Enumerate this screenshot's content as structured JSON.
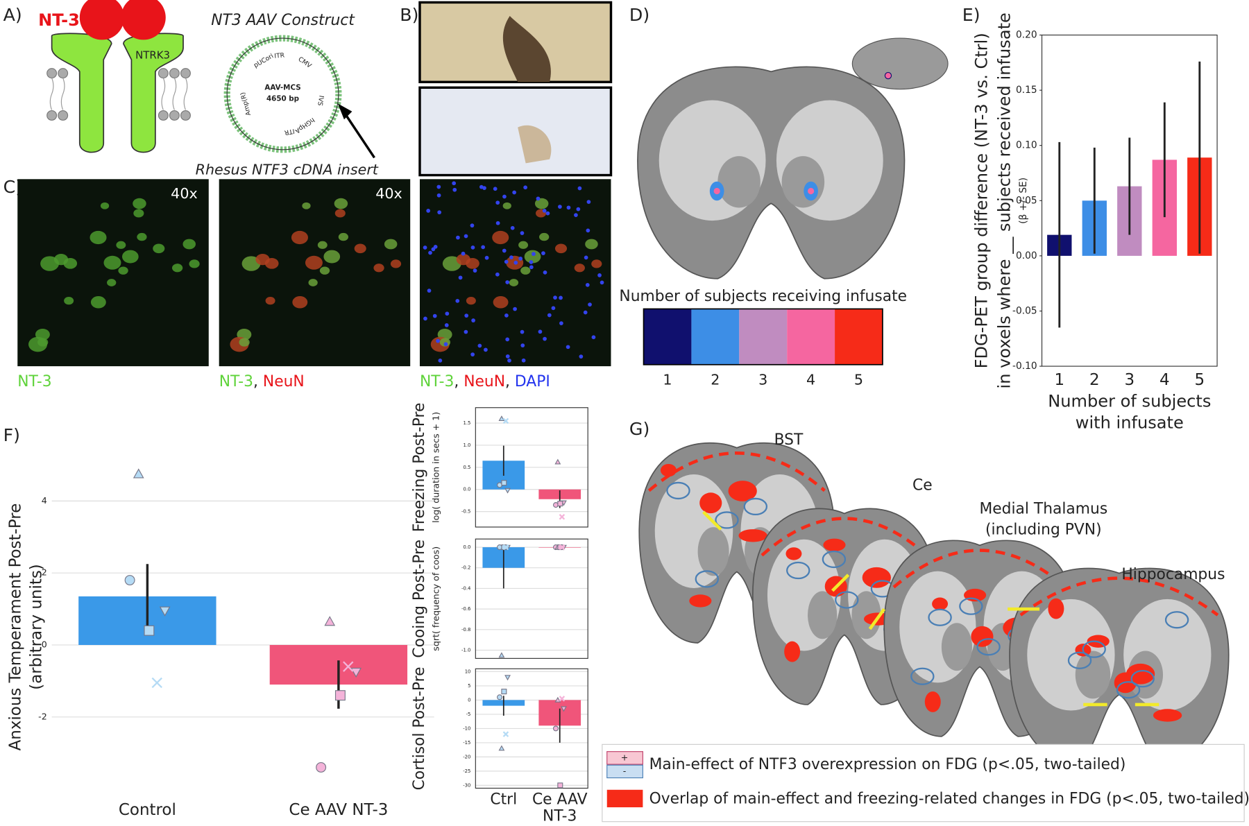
{
  "panels": {
    "A": {
      "label": "A)",
      "ligand": "NT-3",
      "receptor": "NTRK3",
      "construct_title": "NT3 AAV Construct",
      "plasmid_name": "AAV-MCS",
      "plasmid_size": "4650 bp",
      "plasmid_parts": [
        "pUCori",
        "ITR",
        "CMV",
        "IVS",
        "hGHpA",
        "ITR",
        "Amp(R)"
      ],
      "insert": "Rhesus NTF3 cDNA insert"
    },
    "B": {
      "label": "B)"
    },
    "C": {
      "label": "C)",
      "magnifications": [
        "40x",
        "40x"
      ],
      "captions": [
        [
          "NT-3"
        ],
        [
          "NT-3",
          ", ",
          "NeuN"
        ],
        [
          "NT-3",
          ", ",
          "NeuN",
          ", ",
          "DAPI"
        ]
      ]
    },
    "D": {
      "label": "D)",
      "colorbar_title": "Number of subjects receiving infusate",
      "colorbar_labels": [
        "1",
        "2",
        "3",
        "4",
        "5"
      ],
      "colorbar_colors": [
        "#10106e",
        "#3d8ee6",
        "#c08cc0",
        "#f566a0",
        "#f62b18"
      ]
    },
    "E": {
      "label": "E)"
    },
    "F": {
      "label": "F)"
    },
    "G": {
      "label": "G)",
      "regions": [
        [
          "BST"
        ],
        [
          "Ce"
        ],
        [
          "Medial Thalamus",
          "(including PVN)"
        ],
        [
          "Hippocampus"
        ]
      ],
      "legend": [
        {
          "symbols": [
            "+",
            "-"
          ],
          "text": "Main-effect of NTF3 overexpression on FDG (p<.05, two-tailed)"
        },
        {
          "text": "Overlap of main-effect and freezing-related changes in FDG (p<.05, two-tailed)"
        }
      ]
    }
  },
  "chart_data": [
    {
      "type": "bar",
      "categories": [
        "1",
        "2",
        "3",
        "4",
        "5"
      ],
      "values": [
        0.019,
        0.05,
        0.063,
        0.087,
        0.089
      ],
      "errors": [
        0.084,
        0.048,
        0.044,
        0.052,
        0.087
      ],
      "colors": [
        "#10106e",
        "#3d8ee6",
        "#c08cc0",
        "#f566a0",
        "#f62b18"
      ],
      "ylabel": [
        "FDG-PET group difference (NT-3 vs. Ctrl)",
        "in voxels where __ subjects received infusate",
        "(β +/- SE)"
      ],
      "xlabel": [
        "Number of subjects",
        "with infusate"
      ],
      "ylim": [
        -0.1,
        0.2
      ],
      "yticks": [
        {
          "value": -0.1,
          "label": "-0.10"
        },
        {
          "value": -0.05,
          "label": "-0.05"
        },
        {
          "value": 0,
          "label": "0.00"
        },
        {
          "value": 0.05,
          "label": "0.05"
        },
        {
          "value": 0.1,
          "label": "0.10"
        },
        {
          "value": 0.15,
          "label": "0.15"
        },
        {
          "value": 0.2,
          "label": "0.20"
        }
      ],
      "grid": false,
      "frame": true
    },
    {
      "type": "bar",
      "categories": [
        "Control",
        "Ce AAV NT-3"
      ],
      "values": [
        1.35,
        -1.1
      ],
      "errors": [
        0.9,
        0.67
      ],
      "colors": [
        "#3a99e8",
        "#f0557a"
      ],
      "points": [
        [
          1.8,
          4.75,
          0.95,
          0.4,
          -1.05
        ],
        [
          -3.4,
          0.65,
          -0.75,
          -1.4,
          -0.6
        ]
      ],
      "markers": [
        "circle",
        "triangle",
        "triangle-down",
        "square",
        "x"
      ],
      "point_colors": [
        "#b5dbf5",
        "#f4b3d9"
      ],
      "ylabel": [
        "Anxious Temperament Post-Pre",
        "(arbitrary units)"
      ],
      "ylim": [
        -4.2,
        5.2
      ],
      "yticks": [
        -2,
        0,
        2,
        4
      ],
      "grid": true,
      "frame": false
    },
    {
      "type": "bar",
      "categories": [
        null,
        null
      ],
      "values": [
        0.65,
        -0.22
      ],
      "errors": [
        0.34,
        0.2
      ],
      "colors": [
        "#3a99e8",
        "#f0557a"
      ],
      "points": [
        [
          0.1,
          1.6,
          -0.02,
          0.15,
          1.55
        ],
        [
          -0.35,
          0.62,
          -0.3,
          -0.32,
          -0.62
        ]
      ],
      "markers": [
        "circle",
        "triangle",
        "triangle-down",
        "square",
        "x"
      ],
      "point_colors": [
        "#b5dbf5",
        "#f4b3d9"
      ],
      "ylabel": [
        "Freezing Post-Pre",
        "log( duration in secs + 1)"
      ],
      "ylim": [
        -0.85,
        1.85
      ],
      "yticks": [
        -0.5,
        {
          "value": 0,
          "label": "0.0"
        },
        0.5,
        {
          "value": 1,
          "label": "1.0"
        },
        1.5
      ],
      "grid": true,
      "frame": true
    },
    {
      "type": "bar",
      "categories": [
        null,
        null
      ],
      "values": [
        -0.2,
        0
      ],
      "errors": [
        0.2,
        0
      ],
      "colors": [
        "#3a99e8",
        "#f0557a"
      ],
      "points": [
        [
          0,
          -1.05,
          0,
          0,
          0
        ],
        [
          0,
          0,
          0,
          0,
          0
        ]
      ],
      "markers": [
        "circle",
        "triangle",
        "triangle-down",
        "square",
        "x"
      ],
      "point_colors": [
        "#b5dbf5",
        "#f4b3d9"
      ],
      "ylabel": [
        "Cooing Post-Pre",
        "sqrt( frequency of coos)"
      ],
      "ylim": [
        -1.08,
        0.08
      ],
      "yticks": [
        {
          "value": -1,
          "label": "-1.0"
        },
        -0.8,
        -0.6,
        -0.4,
        -0.2,
        {
          "value": 0,
          "label": "0.0"
        }
      ],
      "grid": true,
      "frame": true
    },
    {
      "type": "bar",
      "categories": [
        "Ctrl",
        "Ce AAV NT-3"
      ],
      "values": [
        -2,
        -9
      ],
      "errors": [
        3.5,
        6
      ],
      "colors": [
        "#3a99e8",
        "#f0557a"
      ],
      "points": [
        [
          1,
          -17,
          8,
          3,
          -12
        ],
        [
          -10,
          0,
          -3,
          -30,
          0.5
        ]
      ],
      "markers": [
        "circle",
        "triangle",
        "triangle-down",
        "square",
        "x"
      ],
      "point_colors": [
        "#b5dbf5",
        "#f4b3d9"
      ],
      "ylabel": [
        "Cortisol Post-Pre"
      ],
      "ylim": [
        -31,
        11
      ],
      "yticks": [
        -30,
        -25,
        -20,
        -15,
        -10,
        -5,
        0,
        5,
        10
      ],
      "grid": true,
      "frame": true
    }
  ]
}
